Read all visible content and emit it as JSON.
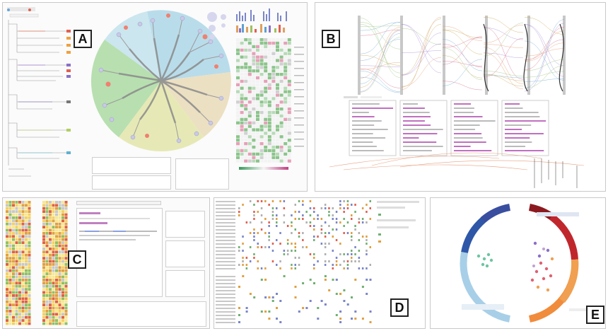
{
  "figure": {
    "panels": [
      {
        "id": "A",
        "label": "A"
      },
      {
        "id": "B",
        "label": "B"
      },
      {
        "id": "C",
        "label": "C"
      },
      {
        "id": "D",
        "label": "D"
      },
      {
        "id": "E",
        "label": "E"
      }
    ]
  },
  "colors": {
    "sector_blue": "#b9dcea",
    "sector_green": "#b8dfb0",
    "sector_yellow": "#eee4b3",
    "sector_tan": "#e9dcc0",
    "branch": "#8a8a8a",
    "node": "#c9c9e6",
    "node_hot": "#f08070",
    "heat_green": "#7fb87f",
    "heat_red": "#e08a8a",
    "ring_blue": "#2f57a8",
    "ring_red": "#c0272d",
    "ring_orange": "#f08c3c",
    "ring_lightblue": "#a8cfe8"
  }
}
